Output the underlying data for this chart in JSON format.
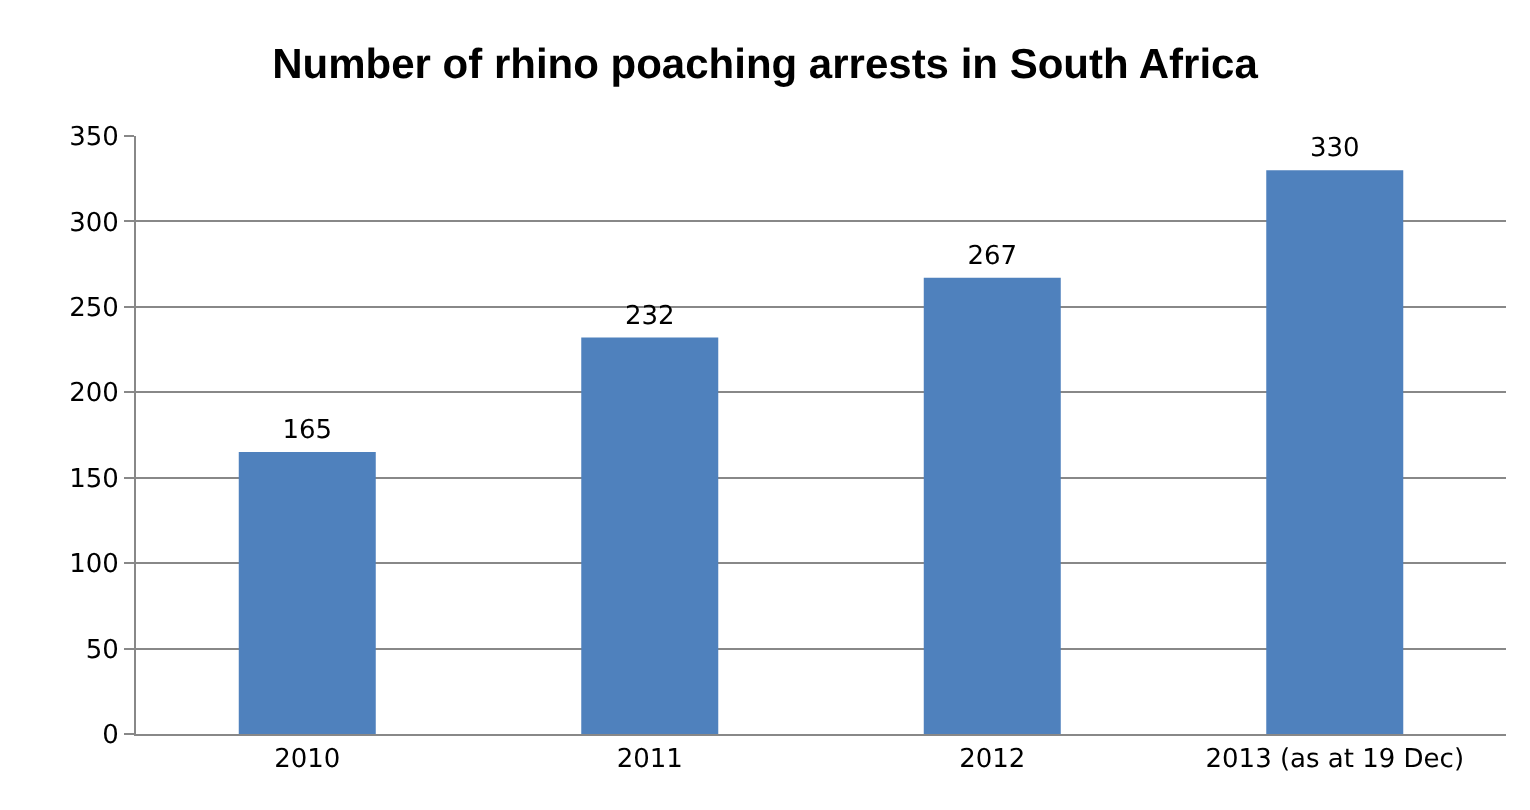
{
  "chart_data": {
    "type": "bar",
    "title": "Number of rhino poaching arrests in South Africa",
    "categories": [
      "2010",
      "2011",
      "2012",
      "2013 (as at 19 Dec)"
    ],
    "values": [
      165,
      232,
      267,
      330
    ],
    "color": "#4f81bd",
    "ylim": [
      0,
      350
    ],
    "yticks": [
      0,
      50,
      100,
      150,
      200,
      250,
      300,
      350
    ],
    "grid": "y",
    "data_labels": true,
    "legend": false
  }
}
